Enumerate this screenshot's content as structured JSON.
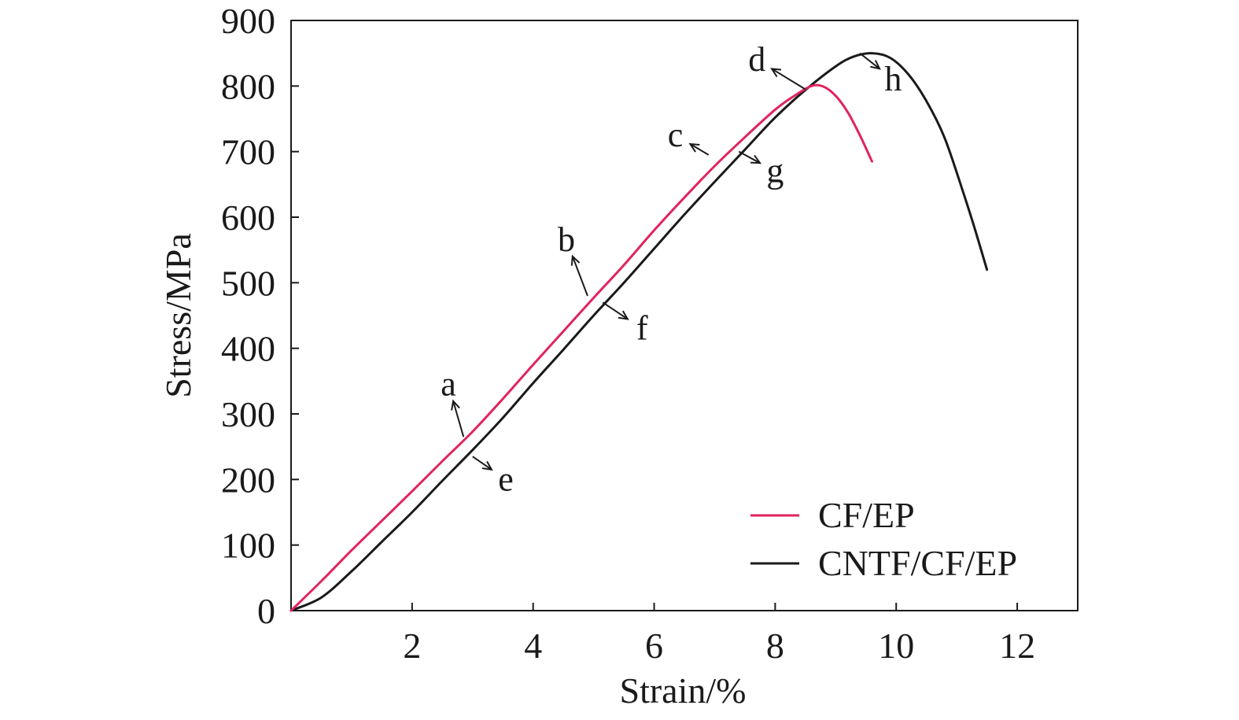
{
  "chart_data": {
    "type": "line",
    "xlabel": "Strain/%",
    "ylabel": "Stress/MPa",
    "xlim": [
      0,
      13
    ],
    "ylim": [
      0,
      900
    ],
    "x_ticks": [
      2,
      4,
      6,
      8,
      10,
      12
    ],
    "y_ticks": [
      0,
      100,
      200,
      300,
      400,
      500,
      600,
      700,
      800,
      900
    ],
    "grid": false,
    "legend_position": "bottom-right",
    "series": [
      {
        "name": "CF/EP",
        "color": "#e0245e",
        "x": [
          0,
          0.5,
          1,
          1.5,
          2,
          2.5,
          3,
          3.5,
          4,
          4.5,
          5,
          5.5,
          6,
          6.5,
          7,
          7.5,
          8,
          8.3,
          8.6,
          8.8,
          9.0,
          9.2,
          9.4,
          9.6
        ],
        "y": [
          0,
          45,
          92,
          137,
          182,
          228,
          273,
          323,
          375,
          426,
          477,
          527,
          580,
          630,
          678,
          722,
          764,
          784,
          800,
          799,
          785,
          760,
          725,
          685
        ]
      },
      {
        "name": "CNTF/CF/EP",
        "color": "#1a1a1a",
        "x": [
          0,
          0.5,
          1,
          1.5,
          2,
          2.5,
          3,
          3.5,
          4,
          4.5,
          5,
          5.5,
          6,
          6.5,
          7,
          7.5,
          8,
          8.5,
          9,
          9.3,
          9.6,
          9.9,
          10.2,
          10.5,
          10.8,
          11.1,
          11.3,
          11.5
        ],
        "y": [
          0,
          20,
          60,
          105,
          150,
          198,
          245,
          294,
          347,
          398,
          450,
          500,
          552,
          604,
          654,
          703,
          752,
          794,
          830,
          845,
          850,
          843,
          818,
          777,
          721,
          640,
          582,
          520
        ]
      }
    ],
    "annotations": [
      {
        "label": "a",
        "series": "CF/EP",
        "point": [
          2.85,
          265
        ],
        "text_at": [
          2.6,
          345
        ]
      },
      {
        "label": "b",
        "series": "CF/EP",
        "point": [
          4.9,
          480
        ],
        "text_at": [
          4.55,
          565
        ]
      },
      {
        "label": "c",
        "series": "CF/EP",
        "point": [
          6.9,
          695
        ],
        "text_at": [
          6.35,
          725
        ]
      },
      {
        "label": "d",
        "series": "CF/EP",
        "point": [
          8.5,
          795
        ],
        "text_at": [
          7.7,
          840
        ]
      },
      {
        "label": "e",
        "series": "CNTF/CF/EP",
        "point": [
          3.0,
          235
        ],
        "text_at": [
          3.55,
          200
        ]
      },
      {
        "label": "f",
        "series": "CNTF/CF/EP",
        "point": [
          5.15,
          470
        ],
        "text_at": [
          5.8,
          430
        ]
      },
      {
        "label": "g",
        "series": "CNTF/CF/EP",
        "point": [
          7.4,
          700
        ],
        "text_at": [
          8.0,
          670
        ]
      },
      {
        "label": "h",
        "series": "CNTF/CF/EP",
        "point": [
          9.4,
          850
        ],
        "text_at": [
          9.95,
          810
        ]
      }
    ]
  }
}
